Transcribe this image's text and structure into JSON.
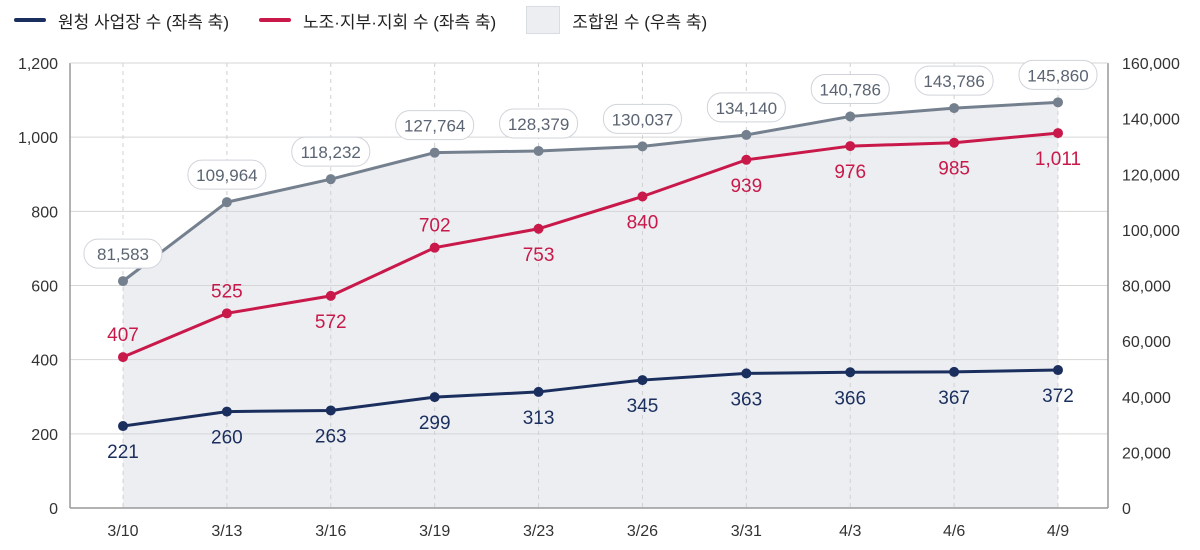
{
  "chart_data": {
    "type": "line",
    "categories": [
      "3/10",
      "3/13",
      "3/16",
      "3/19",
      "3/23",
      "3/26",
      "3/31",
      "4/3",
      "4/6",
      "4/9"
    ],
    "series": [
      {
        "name": "원청 사업장 수 (좌측 축)",
        "axis": "left",
        "color": "#1b2f5e",
        "values": [
          221,
          260,
          263,
          299,
          313,
          345,
          363,
          366,
          367,
          372
        ]
      },
      {
        "name": "노조·지부·지회 수 (좌측 축)",
        "axis": "left",
        "color": "#c8194a",
        "values": [
          407,
          525,
          572,
          702,
          753,
          840,
          939,
          976,
          985,
          1011
        ]
      },
      {
        "name": "조합원 수 (우측 축)",
        "axis": "right",
        "type": "area",
        "color": "#75808f",
        "fill": "#eceef2",
        "values": [
          81583,
          109964,
          118232,
          127764,
          128379,
          130037,
          134140,
          140786,
          143786,
          145860
        ]
      }
    ],
    "left_axis": {
      "ylim": [
        0,
        1200
      ],
      "ticks": [
        "0",
        "200",
        "400",
        "600",
        "800",
        "1,000",
        "1,200"
      ]
    },
    "right_axis": {
      "ylim": [
        0,
        160000
      ],
      "ticks": [
        "0",
        "20,000",
        "40,000",
        "60,000",
        "80,000",
        "100,000",
        "120,000",
        "140,000",
        "160,000"
      ]
    },
    "grid": true,
    "legend_position": "top-left"
  }
}
